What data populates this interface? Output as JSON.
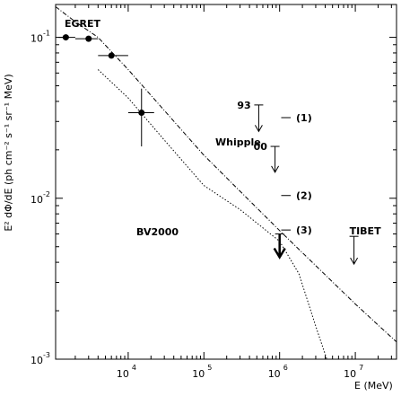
{
  "chart_data": {
    "type": "scatter",
    "xlabel": "E (MeV)",
    "ylabel": "E² dΦ/dE (ph cm⁻² s⁻¹ sr⁻¹ MeV)",
    "x_scale": "log",
    "y_scale": "log",
    "xlim": [
      1100,
      35000000
    ],
    "ylim": [
      0.001,
      0.16
    ],
    "x_ticks": [
      {
        "value": 10000,
        "base": "10",
        "exp": "4"
      },
      {
        "value": 100000,
        "base": "10",
        "exp": "5"
      },
      {
        "value": 1000000,
        "base": "10",
        "exp": "6"
      },
      {
        "value": 10000000,
        "base": "10",
        "exp": "7"
      }
    ],
    "y_ticks": [
      {
        "value": 0.1,
        "base": "10",
        "exp": "-1"
      },
      {
        "value": 0.01,
        "base": "10",
        "exp": "-2"
      },
      {
        "value": 0.001,
        "base": "10",
        "exp": "-3"
      }
    ],
    "grid": false,
    "series": [
      {
        "name": "EGRET",
        "style": "points",
        "points": [
          {
            "x": 1500,
            "y": 0.1,
            "xerr": [
              1200,
              2000
            ]
          },
          {
            "x": 3000,
            "y": 0.098,
            "xerr": [
              2000,
              4000
            ]
          },
          {
            "x": 6000,
            "y": 0.077,
            "xerr": [
              4000,
              10000
            ]
          },
          {
            "x": 15000,
            "y": 0.034,
            "xerr": [
              10000,
              22000
            ],
            "yerr": [
              0.021,
              0.048
            ]
          }
        ]
      },
      {
        "name": "EGRET-line",
        "style": "dashdot",
        "x": [
          1100,
          2000,
          4000,
          10000,
          100000,
          1000000,
          10000000,
          35000000
        ],
        "y": [
          0.155,
          0.125,
          0.1,
          0.063,
          0.0185,
          0.0063,
          0.0022,
          0.00128
        ]
      },
      {
        "name": "BV2000",
        "style": "dotted",
        "x": [
          4000,
          10000,
          30000,
          100000,
          300000,
          1000000,
          1800000,
          3000000,
          4200000
        ],
        "y": [
          0.063,
          0.042,
          0.023,
          0.012,
          0.0085,
          0.0054,
          0.0034,
          0.0016,
          0.001
        ]
      }
    ],
    "upper_limits": [
      {
        "label": "93",
        "x": 530000,
        "y": 0.038,
        "y_end": 0.026,
        "size": "thin"
      },
      {
        "label": "00",
        "x": 870000,
        "y": 0.021,
        "y_end": 0.0145,
        "size": "thin"
      },
      {
        "label": "TIBET",
        "x": 9600000,
        "y": 0.0058,
        "y_end": 0.0039,
        "size": "thin"
      },
      {
        "label": "",
        "x": 1000000,
        "y": 0.006,
        "y_end": 0.0043,
        "size": "thick"
      }
    ],
    "markers": [
      {
        "label": "(1)",
        "x1": 1050000,
        "x2": 1400000,
        "y": 0.0317
      },
      {
        "label": "(2)",
        "x1": 1050000,
        "x2": 1400000,
        "y": 0.0104
      },
      {
        "label": "(3)",
        "x1": 1050000,
        "x2": 1400000,
        "y": 0.00635
      }
    ],
    "annotations": {
      "egret": "EGRET",
      "whipple": "Whipple",
      "bv2000": "BV2000"
    }
  }
}
